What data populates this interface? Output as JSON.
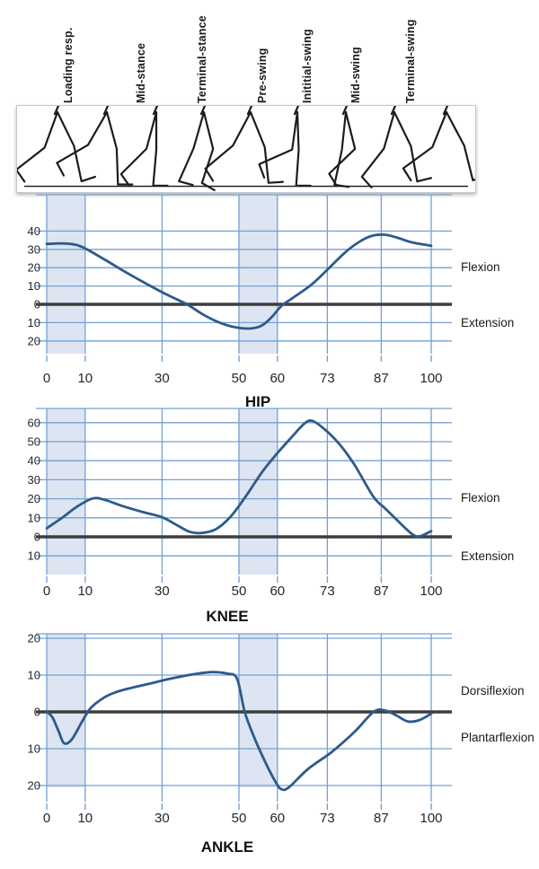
{
  "illustration": {
    "icon": "walking-legs-gait-sequence",
    "phase_labels": [
      "Loading resp.",
      "Mid-stance",
      "Terminal-stance",
      "Pre-swing",
      "Inititial-swing",
      "Mid-swing",
      "Terminal-swing"
    ]
  },
  "colors": {
    "curve": "#2d5a8c",
    "grid": "#74a0d4",
    "band": "#dce5f1",
    "zero_line": "#3d3d3d",
    "text": "#1a1a1a",
    "figure_line": "#1c1c1c"
  },
  "chart_data": [
    {
      "type": "line",
      "title": "HIP",
      "xlabel": "",
      "ylabel": "",
      "x_ticks": [
        0,
        10,
        30,
        50,
        60,
        73,
        87,
        100
      ],
      "y_ticks": [
        40,
        30,
        20,
        10,
        0,
        -10,
        -20
      ],
      "y_tick_label_style": "absolute",
      "xlim": [
        0,
        105
      ],
      "ylim": [
        -27,
        60
      ],
      "grid": true,
      "shaded_bands": [
        [
          0,
          10
        ],
        [
          50,
          60
        ]
      ],
      "labels": {
        "positive": "Flexion",
        "negative": "Extension"
      },
      "points": [
        [
          0,
          33
        ],
        [
          5,
          33.2
        ],
        [
          9,
          31.5
        ],
        [
          15,
          24.5
        ],
        [
          21,
          17
        ],
        [
          27,
          10
        ],
        [
          32,
          4.5
        ],
        [
          36.5,
          0
        ],
        [
          41,
          -6
        ],
        [
          45,
          -10
        ],
        [
          49,
          -12.5
        ],
        [
          53,
          -13.2
        ],
        [
          56,
          -11.5
        ],
        [
          58.5,
          -7
        ],
        [
          61,
          -1
        ],
        [
          64,
          3.5
        ],
        [
          69,
          11
        ],
        [
          74,
          21
        ],
        [
          78,
          29
        ],
        [
          82,
          35
        ],
        [
          85,
          37.6
        ],
        [
          88,
          38
        ],
        [
          91,
          36.5
        ],
        [
          95,
          33.8
        ],
        [
          100,
          32
        ]
      ]
    },
    {
      "type": "line",
      "title": "KNEE",
      "xlabel": "",
      "ylabel": "",
      "x_ticks": [
        0,
        10,
        30,
        50,
        60,
        73,
        87,
        100
      ],
      "y_ticks": [
        60,
        50,
        40,
        30,
        20,
        10,
        0,
        -10
      ],
      "y_tick_label_style": "absolute",
      "xlim": [
        0,
        105
      ],
      "ylim": [
        -17,
        67
      ],
      "grid": true,
      "shaded_bands": [
        [
          0,
          10
        ],
        [
          50,
          60
        ]
      ],
      "labels": {
        "positive": "Flexion",
        "negative": "Extension"
      },
      "points": [
        [
          0,
          4.5
        ],
        [
          4,
          10
        ],
        [
          8,
          16
        ],
        [
          12,
          20.2
        ],
        [
          15,
          19.5
        ],
        [
          20,
          16
        ],
        [
          25,
          13
        ],
        [
          30,
          10.3
        ],
        [
          34,
          6
        ],
        [
          37,
          2.8
        ],
        [
          40,
          2
        ],
        [
          44,
          4
        ],
        [
          48,
          11
        ],
        [
          52,
          22
        ],
        [
          56,
          34
        ],
        [
          60,
          44
        ],
        [
          64,
          53
        ],
        [
          67,
          59.5
        ],
        [
          69,
          61
        ],
        [
          72,
          57
        ],
        [
          76,
          49
        ],
        [
          80,
          38
        ],
        [
          85,
          21
        ],
        [
          88,
          15
        ],
        [
          91,
          9
        ],
        [
          95,
          1.5
        ],
        [
          97,
          0.3
        ],
        [
          100,
          3
        ]
      ]
    },
    {
      "type": "line",
      "title": "ANKLE",
      "xlabel": "",
      "ylabel": "",
      "x_ticks": [
        0,
        10,
        30,
        50,
        60,
        73,
        87,
        100
      ],
      "y_ticks": [
        20,
        10,
        0,
        -10,
        -20
      ],
      "y_tick_label_style": "absolute",
      "xlim": [
        0,
        105
      ],
      "ylim": [
        -24,
        21
      ],
      "grid": true,
      "shaded_bands": [
        [
          0,
          10
        ],
        [
          50,
          60
        ]
      ],
      "labels": {
        "positive": "Dorsiflexion",
        "negative": "Plantarflexion"
      },
      "points": [
        [
          0,
          0
        ],
        [
          1.5,
          -1.5
        ],
        [
          3,
          -5
        ],
        [
          4.5,
          -8.5
        ],
        [
          6.5,
          -7.5
        ],
        [
          9,
          -3
        ],
        [
          11,
          0.5
        ],
        [
          13,
          2.5
        ],
        [
          16,
          4.5
        ],
        [
          20,
          6
        ],
        [
          26,
          7.5
        ],
        [
          32,
          9
        ],
        [
          38,
          10.2
        ],
        [
          43,
          10.8
        ],
        [
          47,
          10.4
        ],
        [
          49.5,
          9
        ],
        [
          51.5,
          0
        ],
        [
          54,
          -7
        ],
        [
          57,
          -14
        ],
        [
          59.5,
          -19
        ],
        [
          61,
          -21
        ],
        [
          63,
          -20.5
        ],
        [
          68,
          -15.5
        ],
        [
          74,
          -11
        ],
        [
          80,
          -5.5
        ],
        [
          85,
          0
        ],
        [
          88,
          0.4
        ],
        [
          91,
          -1
        ],
        [
          94,
          -2.6
        ],
        [
          97,
          -2.2
        ],
        [
          100,
          -0.5
        ]
      ]
    }
  ]
}
